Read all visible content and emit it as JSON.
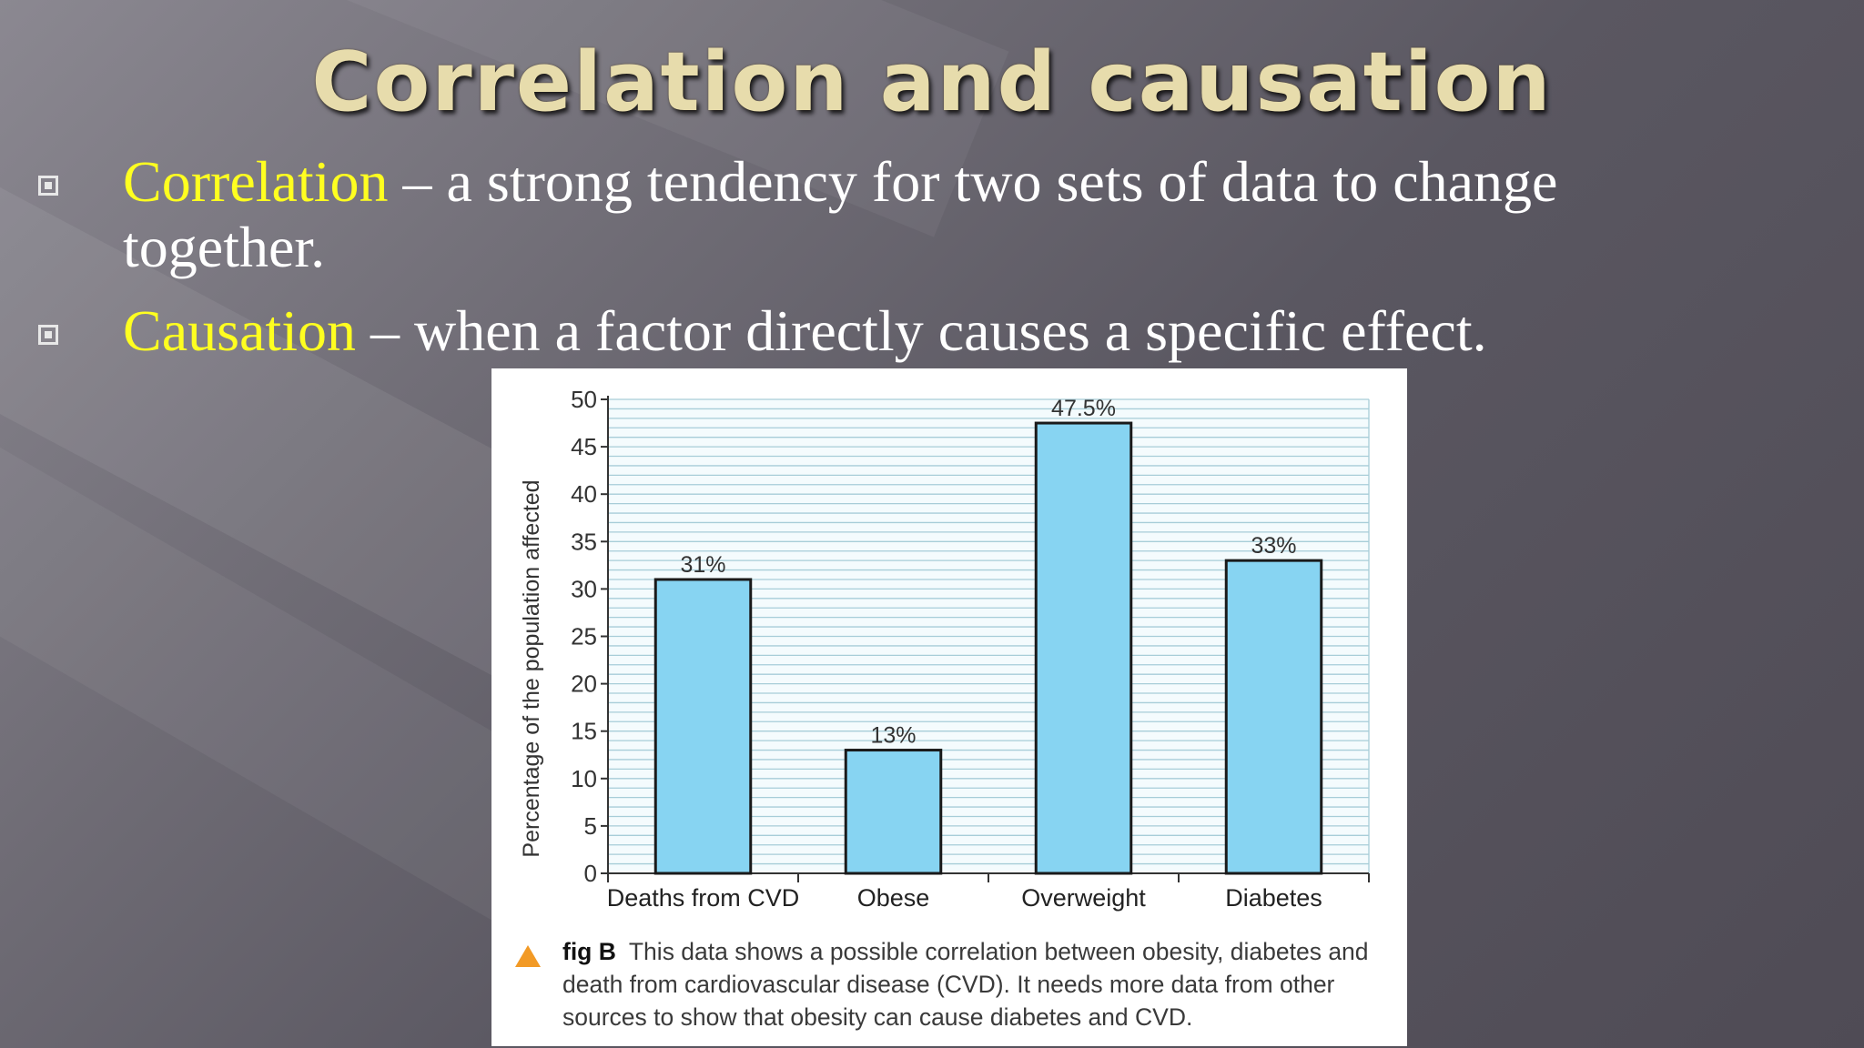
{
  "slide": {
    "title": "Correlation and causation",
    "bullets": [
      {
        "term": "Correlation",
        "text": " – a strong tendency for two sets of data to change together."
      },
      {
        "term": "Causation",
        "text": " – when a factor directly causes a specific effect."
      }
    ]
  },
  "colors": {
    "bar": "#87d4f2",
    "grid": "#a7cdd8",
    "term": "#ffff20",
    "title": "#e7dcac",
    "caption_marker": "#f29a26"
  },
  "chart_data": {
    "type": "bar",
    "categories": [
      "Deaths from CVD",
      "Obese",
      "Overweight",
      "Diabetes"
    ],
    "values": [
      31,
      13,
      47.5,
      33
    ],
    "value_labels": [
      "31%",
      "13%",
      "47.5%",
      "33%"
    ],
    "ylabel": "Percentage of the population affected",
    "ylim": [
      0,
      50
    ],
    "yticks": [
      0,
      5,
      10,
      15,
      20,
      25,
      30,
      35,
      40,
      45,
      50
    ],
    "grid": true,
    "caption_label": "fig B",
    "caption_text": "This data shows a possible correlation between obesity, diabetes and death from cardiovascular disease (CVD). It needs more data from other sources to show that obesity can cause diabetes and CVD."
  }
}
